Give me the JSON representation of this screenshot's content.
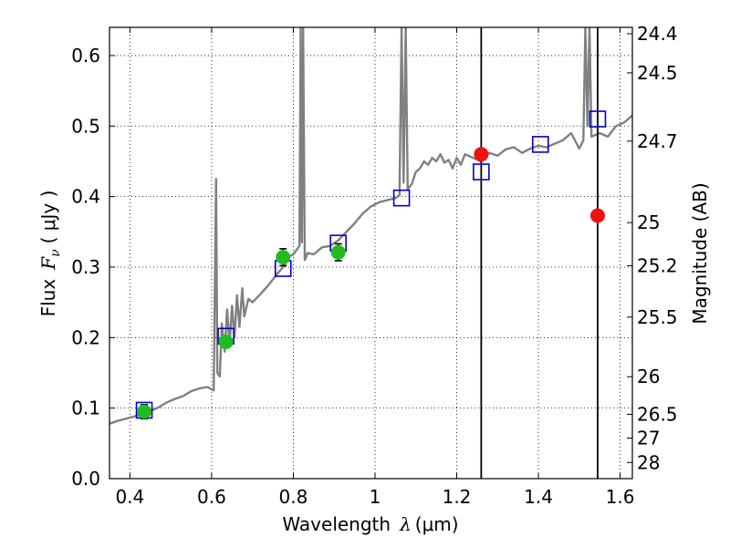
{
  "chart_data": {
    "type": "scatter",
    "xlabel": {
      "prefix": "Wavelength",
      "symbol": "λ",
      "unit": "(μm)"
    },
    "ylabel": {
      "prefix": "Flux",
      "symbol": "F",
      "subscript": "ν",
      "unit": "( μJy )"
    },
    "y2label": "Magnitude (AB)",
    "xlim": [
      0.35,
      1.63
    ],
    "ylim": [
      0.0,
      0.64
    ],
    "grid": true,
    "xticks": [
      {
        "v": 0.4,
        "label": "0.4"
      },
      {
        "v": 0.6,
        "label": "0.6"
      },
      {
        "v": 0.8,
        "label": "0.8"
      },
      {
        "v": 1.0,
        "label": "1"
      },
      {
        "v": 1.2,
        "label": "1.2"
      },
      {
        "v": 1.4,
        "label": "1.4"
      },
      {
        "v": 1.6,
        "label": "1.6"
      }
    ],
    "yticks": [
      {
        "v": 0.0,
        "label": "0.0"
      },
      {
        "v": 0.1,
        "label": "0.1"
      },
      {
        "v": 0.2,
        "label": "0.2"
      },
      {
        "v": 0.3,
        "label": "0.3"
      },
      {
        "v": 0.4,
        "label": "0.4"
      },
      {
        "v": 0.5,
        "label": "0.5"
      },
      {
        "v": 0.6,
        "label": "0.6"
      }
    ],
    "magnitude_ticks": [
      "24.4",
      "24.5",
      "24.7",
      "25",
      "25.2",
      "25.5",
      "26",
      "26.5",
      "27",
      "28"
    ],
    "vertical_lines": [
      1.26,
      1.545
    ],
    "model_spectrum": {
      "color": "#808080",
      "points": [
        [
          0.35,
          0.078
        ],
        [
          0.37,
          0.082
        ],
        [
          0.39,
          0.085
        ],
        [
          0.41,
          0.088
        ],
        [
          0.43,
          0.092
        ],
        [
          0.45,
          0.096
        ],
        [
          0.47,
          0.101
        ],
        [
          0.49,
          0.108
        ],
        [
          0.51,
          0.113
        ],
        [
          0.53,
          0.117
        ],
        [
          0.55,
          0.124
        ],
        [
          0.57,
          0.128
        ],
        [
          0.59,
          0.13
        ],
        [
          0.605,
          0.125
        ],
        [
          0.611,
          0.425
        ],
        [
          0.614,
          0.15
        ],
        [
          0.62,
          0.145
        ],
        [
          0.625,
          0.22
        ],
        [
          0.632,
          0.18
        ],
        [
          0.638,
          0.24
        ],
        [
          0.644,
          0.19
        ],
        [
          0.65,
          0.245
        ],
        [
          0.656,
          0.2
        ],
        [
          0.662,
          0.26
        ],
        [
          0.668,
          0.215
        ],
        [
          0.675,
          0.27
        ],
        [
          0.68,
          0.23
        ],
        [
          0.69,
          0.255
        ],
        [
          0.7,
          0.25
        ],
        [
          0.72,
          0.262
        ],
        [
          0.74,
          0.275
        ],
        [
          0.76,
          0.29
        ],
        [
          0.775,
          0.3
        ],
        [
          0.79,
          0.315
        ],
        [
          0.8,
          0.318
        ],
        [
          0.815,
          0.33
        ],
        [
          0.818,
          0.64
        ],
        [
          0.821,
          0.335
        ],
        [
          0.824,
          0.64
        ],
        [
          0.828,
          0.31
        ],
        [
          0.835,
          0.32
        ],
        [
          0.85,
          0.318
        ],
        [
          0.87,
          0.328
        ],
        [
          0.89,
          0.33
        ],
        [
          0.91,
          0.338
        ],
        [
          0.93,
          0.35
        ],
        [
          0.95,
          0.362
        ],
        [
          0.97,
          0.376
        ],
        [
          0.99,
          0.386
        ],
        [
          1.01,
          0.392
        ],
        [
          1.03,
          0.395
        ],
        [
          1.05,
          0.398
        ],
        [
          1.06,
          0.402
        ],
        [
          1.065,
          0.64
        ],
        [
          1.07,
          0.42
        ],
        [
          1.075,
          0.64
        ],
        [
          1.08,
          0.41
        ],
        [
          1.09,
          0.418
        ],
        [
          1.1,
          0.435
        ],
        [
          1.11,
          0.44
        ],
        [
          1.12,
          0.45
        ],
        [
          1.13,
          0.445
        ],
        [
          1.14,
          0.455
        ],
        [
          1.15,
          0.45
        ],
        [
          1.16,
          0.46
        ],
        [
          1.17,
          0.448
        ],
        [
          1.18,
          0.452
        ],
        [
          1.19,
          0.44
        ],
        [
          1.2,
          0.455
        ],
        [
          1.21,
          0.445
        ],
        [
          1.22,
          0.46
        ],
        [
          1.24,
          0.455
        ],
        [
          1.26,
          0.45
        ],
        [
          1.28,
          0.462
        ],
        [
          1.3,
          0.458
        ],
        [
          1.32,
          0.467
        ],
        [
          1.34,
          0.47
        ],
        [
          1.36,
          0.462
        ],
        [
          1.38,
          0.468
        ],
        [
          1.4,
          0.472
        ],
        [
          1.42,
          0.47
        ],
        [
          1.44,
          0.475
        ],
        [
          1.46,
          0.48
        ],
        [
          1.48,
          0.49
        ],
        [
          1.5,
          0.468
        ],
        [
          1.51,
          0.48
        ],
        [
          1.515,
          0.64
        ],
        [
          1.52,
          0.5
        ],
        [
          1.525,
          0.64
        ],
        [
          1.53,
          0.485
        ],
        [
          1.55,
          0.49
        ],
        [
          1.57,
          0.485
        ],
        [
          1.59,
          0.5
        ],
        [
          1.61,
          0.505
        ],
        [
          1.63,
          0.515
        ]
      ]
    },
    "series": [
      {
        "marker": "square",
        "color": "#0000cc",
        "points": [
          [
            0.435,
            0.097
          ],
          [
            0.635,
            0.202
          ],
          [
            0.775,
            0.298
          ],
          [
            0.91,
            0.334
          ],
          [
            1.065,
            0.398
          ],
          [
            1.26,
            0.435
          ],
          [
            1.405,
            0.474
          ],
          [
            1.545,
            0.51
          ]
        ]
      },
      {
        "marker": "circle",
        "color": "#22bb22",
        "points": [
          {
            "x": 0.435,
            "y": 0.095,
            "err": 0.01
          },
          {
            "x": 0.635,
            "y": 0.194,
            "err": 0.008
          },
          {
            "x": 0.775,
            "y": 0.314,
            "err": 0.012
          },
          {
            "x": 0.91,
            "y": 0.321,
            "err": 0.012
          }
        ]
      },
      {
        "marker": "circle",
        "color": "#ee1111",
        "points": [
          [
            1.26,
            0.46
          ],
          [
            1.545,
            0.373
          ]
        ]
      }
    ]
  }
}
